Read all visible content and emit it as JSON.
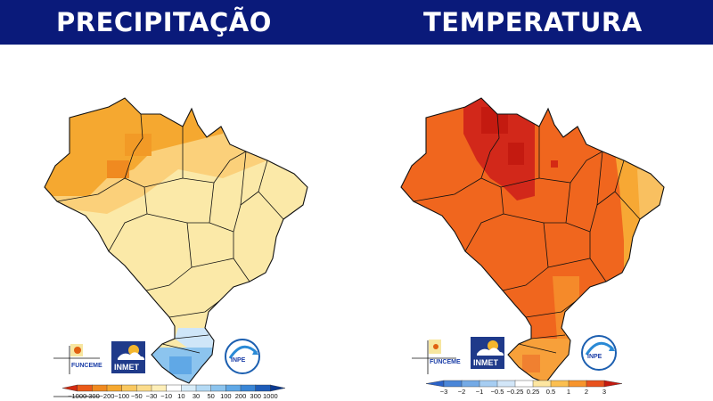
{
  "header": {
    "left_title": "PRECIPITAÇÃO",
    "right_title": "TEMPERATURA"
  },
  "logos": {
    "funceme": "FUNCEME",
    "inmet": "INMET",
    "inpe": "INPE"
  },
  "precip_legend": {
    "ticks": [
      "−1000",
      "−300",
      "−200",
      "−100",
      "−50",
      "−30",
      "−10",
      "10",
      "30",
      "50",
      "100",
      "200",
      "300",
      "1000"
    ],
    "colors": [
      "#d42a10",
      "#ea5a18",
      "#f08a20",
      "#f5a830",
      "#f9c860",
      "#fbdc8c",
      "#fdeeb8",
      "#ffffff",
      "#d8ecf8",
      "#b4daf4",
      "#8cc4ee",
      "#60a8e6",
      "#3a86d6",
      "#1e5cb8",
      "#0c3a90"
    ]
  },
  "temp_legend": {
    "ticks": [
      "−3",
      "−2",
      "−1",
      "−0.5",
      "−0.25",
      "0.25",
      "0.5",
      "1",
      "2",
      "3"
    ],
    "colors": [
      "#2a62c8",
      "#4a86d8",
      "#74aae6",
      "#a6cdf2",
      "#d2e6f8",
      "#ffffff",
      "#fde6a0",
      "#fbbf50",
      "#f7942c",
      "#e8521e",
      "#c41a10"
    ]
  },
  "colors": {
    "header_bg": "#0a1a7a",
    "precip_north": "#f5a830",
    "precip_center": "#fbdc8c",
    "precip_south": "#8cc4ee",
    "temp_main": "#f0661e",
    "temp_hot": "#cc1a10",
    "temp_coast": "#f7a834"
  }
}
